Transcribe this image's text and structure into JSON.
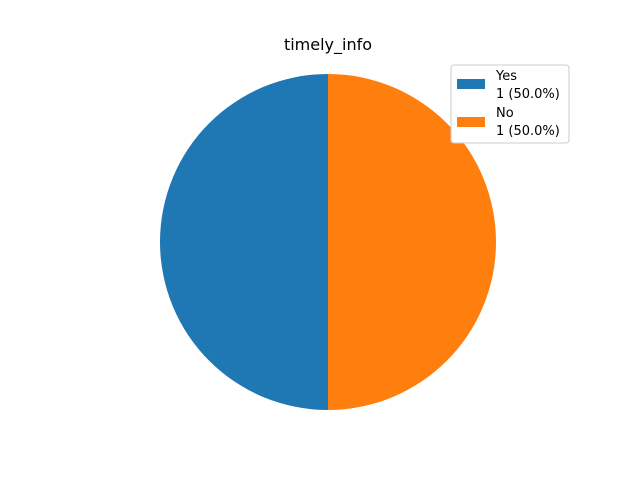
{
  "chart_data": {
    "type": "pie",
    "title": "timely_info",
    "categories": [
      "Yes",
      "No"
    ],
    "values": [
      1,
      1
    ],
    "percentages": [
      "50.0%",
      "50.0%"
    ],
    "legend_labels": [
      {
        "name": "Yes",
        "detail": "1 (50.0%)"
      },
      {
        "name": "No",
        "detail": "1 (50.0%)"
      }
    ],
    "colors": [
      "#1f77b4",
      "#ff7f0e"
    ],
    "legend_position": "top-right",
    "start_angle_deg": 90,
    "direction": "counterclockwise"
  }
}
